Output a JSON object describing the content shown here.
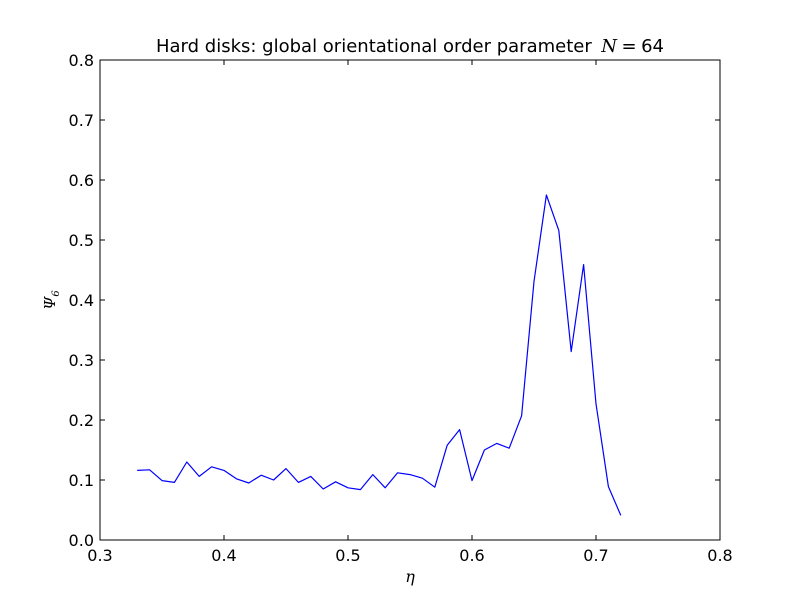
{
  "chart_data": {
    "type": "line",
    "title_text": "Hard disks: global orientational order parameter",
    "title_math_var": "N",
    "title_math_op": "=",
    "title_math_val": "64",
    "xlabel": "η",
    "ylabel_symbol": "Ψ",
    "ylabel_sub": "6",
    "xlim": [
      0.3,
      0.8
    ],
    "ylim": [
      0.0,
      0.8
    ],
    "xticks": [
      "0.3",
      "0.4",
      "0.5",
      "0.6",
      "0.7",
      "0.8"
    ],
    "yticks": [
      "0.0",
      "0.1",
      "0.2",
      "0.3",
      "0.4",
      "0.5",
      "0.6",
      "0.7",
      "0.8"
    ],
    "grid": false,
    "line_color": "#0000ff",
    "series": [
      {
        "x": [
          0.33,
          0.34,
          0.35,
          0.36,
          0.37,
          0.38,
          0.39,
          0.4,
          0.41,
          0.42,
          0.43,
          0.44,
          0.45,
          0.46,
          0.47,
          0.48,
          0.49,
          0.5,
          0.51,
          0.52,
          0.53,
          0.54,
          0.55,
          0.56,
          0.57,
          0.58,
          0.59,
          0.6,
          0.61,
          0.62,
          0.63,
          0.64,
          0.65,
          0.66,
          0.67,
          0.68,
          0.69,
          0.7,
          0.71,
          0.72
        ],
        "y": [
          0.116,
          0.117,
          0.099,
          0.096,
          0.13,
          0.106,
          0.122,
          0.116,
          0.102,
          0.095,
          0.108,
          0.1,
          0.119,
          0.096,
          0.106,
          0.085,
          0.097,
          0.087,
          0.084,
          0.109,
          0.087,
          0.112,
          0.109,
          0.103,
          0.088,
          0.158,
          0.184,
          0.099,
          0.15,
          0.161,
          0.153,
          0.207,
          0.431,
          0.575,
          0.516,
          0.314,
          0.459,
          0.227,
          0.089,
          0.041
        ]
      }
    ]
  }
}
